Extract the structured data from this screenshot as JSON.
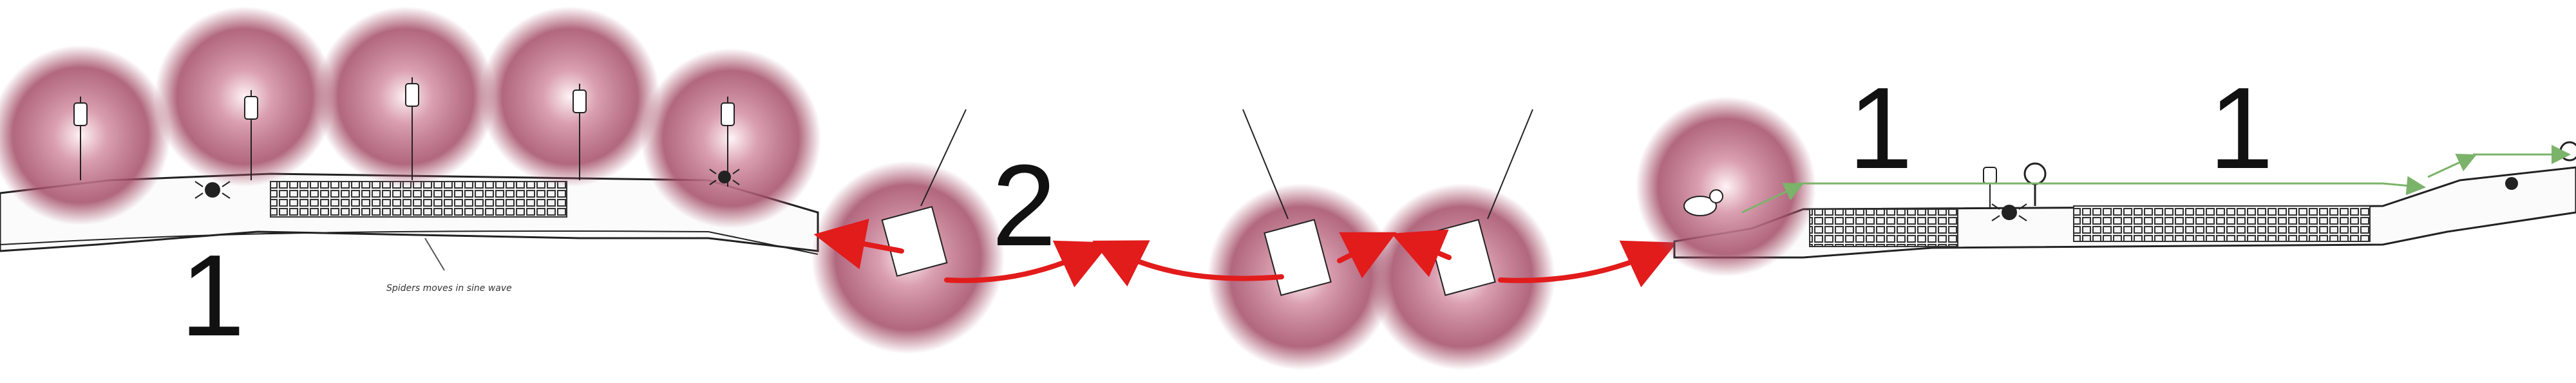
{
  "level_sketch": {
    "step_labels": {
      "left_section": "1",
      "middle_section": "2",
      "right_first": "1",
      "right_second": "1"
    },
    "annotation": "Spiders moves in sine wave"
  },
  "colors": {
    "glow": "#b85a75",
    "arrow_red": "#e21b1b",
    "path_green": "#7bb36a",
    "ink": "#222222"
  },
  "icons": [
    "lantern-icon",
    "spider-icon",
    "hook-icon",
    "cage-elevator-icon",
    "spike-grate-icon",
    "player-character-icon"
  ]
}
